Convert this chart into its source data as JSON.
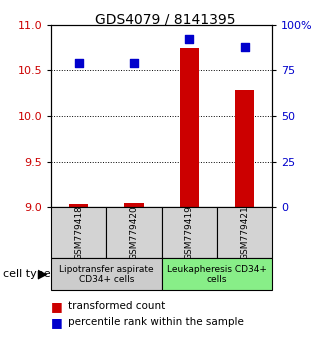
{
  "title": "GDS4079 / 8141395",
  "samples": [
    "GSM779418",
    "GSM779420",
    "GSM779419",
    "GSM779421"
  ],
  "transformed_count": [
    9.03,
    9.04,
    10.75,
    10.28
  ],
  "percentile_rank": [
    79,
    79,
    92,
    88
  ],
  "ylim_left": [
    9.0,
    11.0
  ],
  "ylim_right": [
    0,
    100
  ],
  "yticks_left": [
    9.0,
    9.5,
    10.0,
    10.5,
    11.0
  ],
  "yticks_right": [
    0,
    25,
    50,
    75,
    100
  ],
  "groups": [
    {
      "label": "Lipotransfer aspirate\nCD34+ cells",
      "col_indices": [
        0,
        1
      ],
      "color": "#cccccc"
    },
    {
      "label": "Leukapheresis CD34+\ncells",
      "col_indices": [
        2,
        3
      ],
      "color": "#88ee88"
    }
  ],
  "bar_color": "#cc0000",
  "dot_color": "#0000cc",
  "bar_width": 0.35,
  "dot_size": 40,
  "left_axis_color": "#cc0000",
  "right_axis_color": "#0000cc",
  "title_fontsize": 10,
  "tick_fontsize": 8,
  "sample_label_fontsize": 6.5,
  "group_label_fontsize": 6.5,
  "legend_fontsize": 7.5
}
